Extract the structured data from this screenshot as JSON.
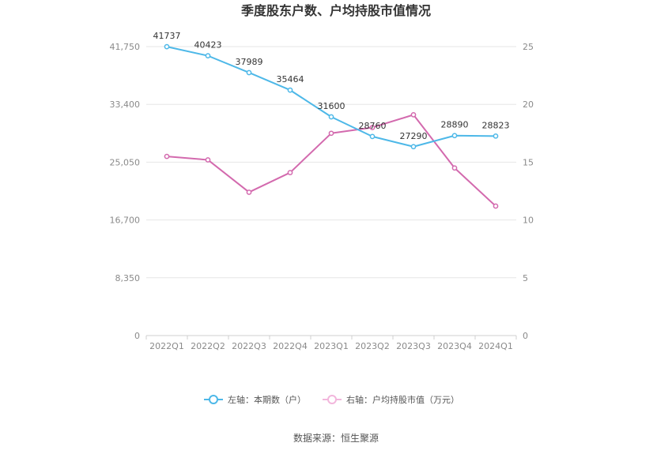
{
  "chart_data": {
    "type": "line",
    "title": "季度股东户数、户均持股市值情况",
    "categories": [
      "2022Q1",
      "2022Q2",
      "2022Q3",
      "2022Q4",
      "2023Q1",
      "2023Q2",
      "2023Q3",
      "2023Q4",
      "2024Q1"
    ],
    "left_axis": {
      "min": 0,
      "max": 41750,
      "ticks": [
        0,
        8350,
        16700,
        25050,
        33400,
        41750
      ],
      "tick_labels": [
        "0",
        "8,350",
        "16,700",
        "25,050",
        "33,400",
        "41,750"
      ]
    },
    "right_axis": {
      "min": 0,
      "max": 25,
      "ticks": [
        0,
        5,
        10,
        15,
        20,
        25
      ],
      "tick_labels": [
        "0",
        "5",
        "10",
        "15",
        "20",
        "25"
      ]
    },
    "series": [
      {
        "name": "左轴：本期数（户）",
        "axis": "left",
        "color": "#4db8e8",
        "values": [
          41737,
          40423,
          37989,
          35464,
          31600,
          28760,
          27290,
          28890,
          28823
        ],
        "labels": [
          "41737",
          "40423",
          "37989",
          "35464",
          "31600",
          "28760",
          "27290",
          "28890",
          "28823"
        ]
      },
      {
        "name": "右轴：户均持股市值（万元）",
        "axis": "right",
        "color": "#d36aae",
        "values": [
          15.5,
          15.2,
          12.4,
          14.1,
          17.5,
          18.0,
          19.1,
          14.5,
          11.2
        ]
      }
    ],
    "grid": true,
    "legend_position": "bottom"
  },
  "legend_colors": {
    "left": "#4db8e8",
    "right": "#f2b6dc"
  },
  "source": "数据来源：恒生聚源"
}
